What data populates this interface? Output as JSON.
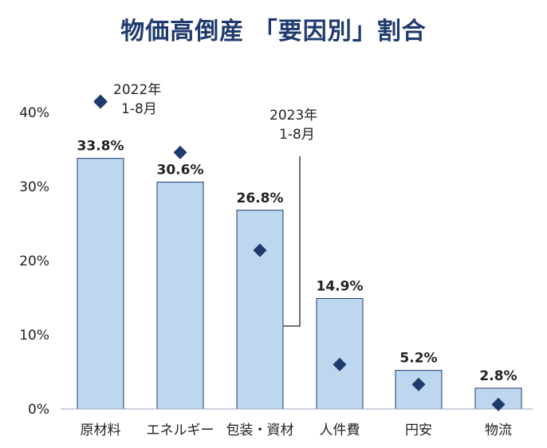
{
  "title": "物価高倒産 「要因別」割合",
  "chart_data": {
    "type": "bar",
    "title": "物価高倒産 「要因別」割合",
    "categories": [
      "原材料",
      "エネルギー",
      "包装・資材",
      "人件費",
      "円安",
      "物流"
    ],
    "series": [
      {
        "name": "2023年 1-8月",
        "type": "bar",
        "values": [
          33.8,
          30.6,
          26.8,
          14.9,
          5.2,
          2.8
        ],
        "labels": [
          "33.8%",
          "30.6%",
          "26.8%",
          "14.9%",
          "5.2%",
          "2.8%"
        ]
      },
      {
        "name": "2022年 1-8月",
        "type": "marker",
        "values": [
          41.5,
          34.6,
          21.4,
          6.0,
          3.3,
          0.6
        ]
      }
    ],
    "ylim": [
      0,
      40
    ],
    "yticks": [
      "0%",
      "10%",
      "20%",
      "30%",
      "40%"
    ],
    "xlabel": "",
    "ylabel": "",
    "grid": false,
    "legend": "inline annotations",
    "annotations": {
      "y2022_line1": "2022年",
      "y2022_line2": "1-8月",
      "y2023_line1": "2023年",
      "y2023_line2": "1-8月"
    },
    "colors": {
      "bar_fill": "#bdd7ee",
      "bar_stroke": "#1f3a6d",
      "marker": "#1f3a6d",
      "title": "#1f3a6d"
    }
  }
}
